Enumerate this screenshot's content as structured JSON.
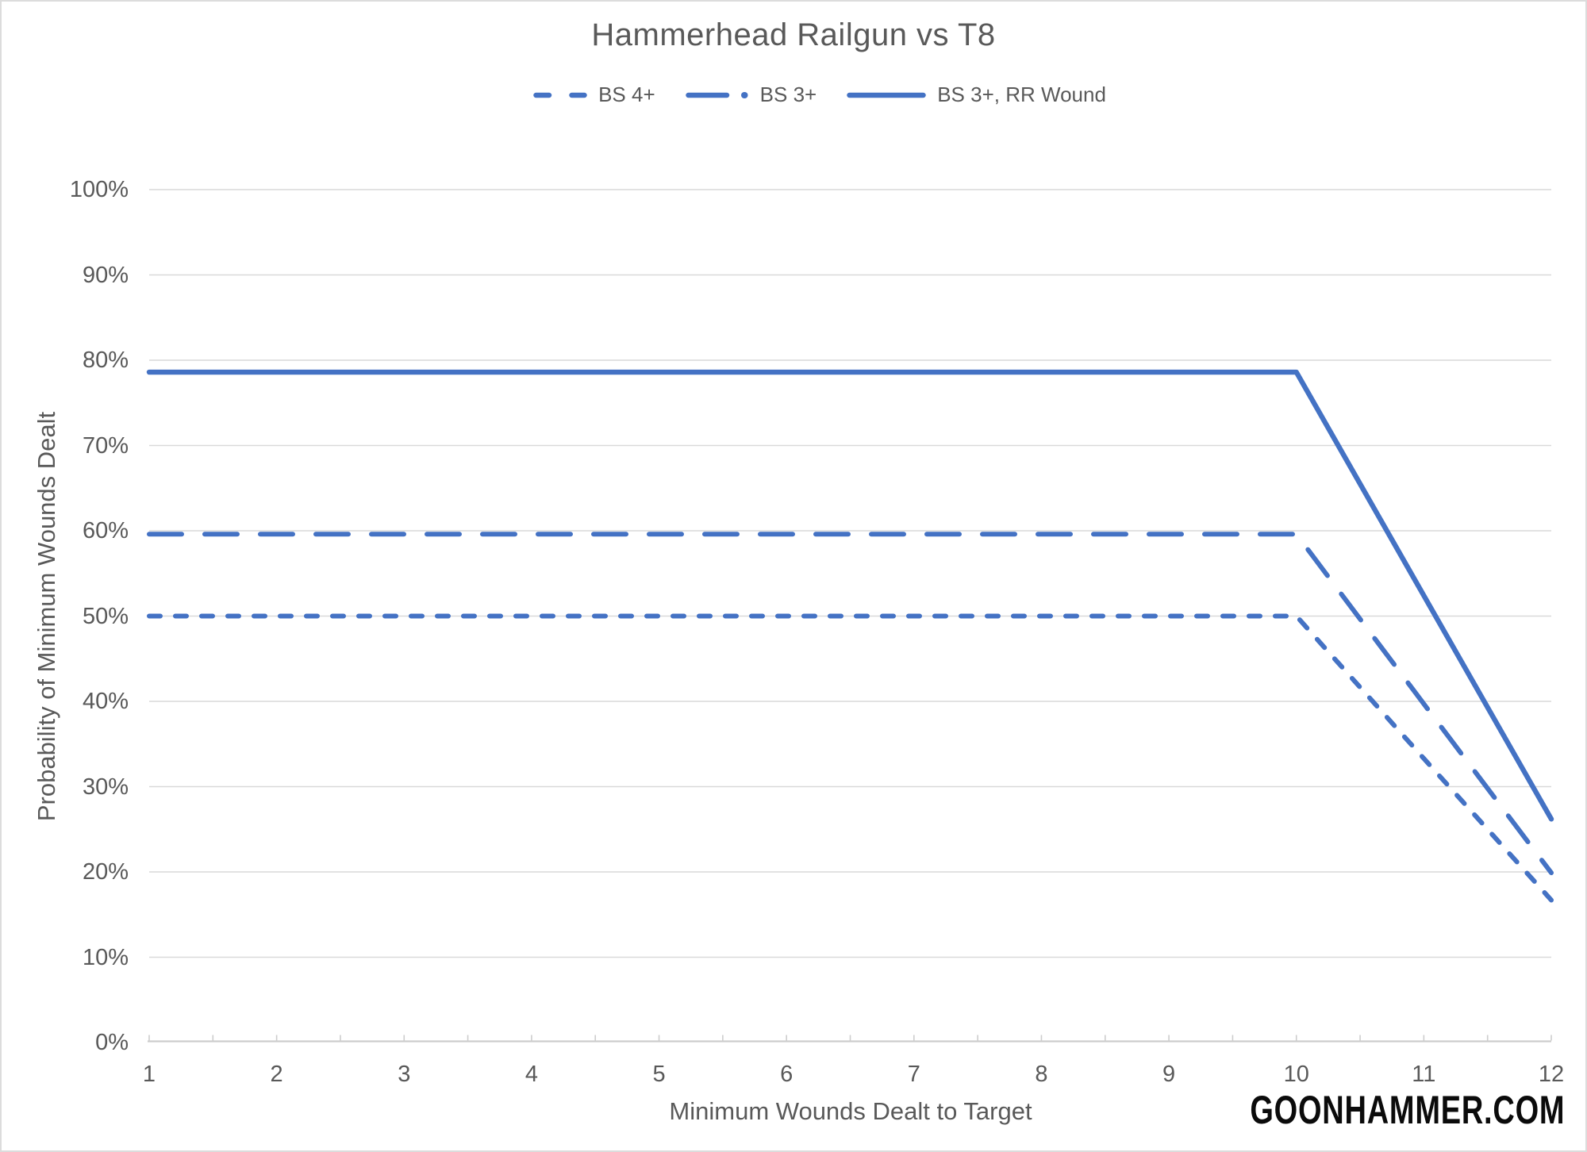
{
  "meta": {
    "watermark": "GOONHAMMER.COM"
  },
  "colors": {
    "series_blue": "#4472C4",
    "text_gray": "#595959",
    "gridline_gray": "#D9D9D9",
    "axis_line_gray": "#CDCDCD",
    "watermark_black": "#0B0B0B"
  },
  "chart_data": {
    "type": "line",
    "title": "Hammerhead Railgun vs T8",
    "xlabel": "Minimum Wounds Dealt to Target",
    "ylabel": "Probability of Minimum Wounds Dealt",
    "x": [
      1,
      2,
      3,
      4,
      5,
      6,
      7,
      8,
      9,
      10,
      11,
      12
    ],
    "x_tick_labels": [
      "1",
      "2",
      "3",
      "4",
      "5",
      "6",
      "7",
      "8",
      "9",
      "10",
      "11",
      "12"
    ],
    "y_ticks_percent": [
      0,
      10,
      20,
      30,
      40,
      50,
      60,
      70,
      80,
      90,
      100
    ],
    "y_tick_labels": [
      "0%",
      "10%",
      "20%",
      "30%",
      "40%",
      "50%",
      "60%",
      "70%",
      "80%",
      "90%",
      "100%"
    ],
    "ylim": [
      0,
      100
    ],
    "grid": true,
    "legend_position": "top-center",
    "line_color": "#4472C4",
    "series": [
      {
        "name": "BS 4+",
        "dash": "short-dash",
        "values": [
          50,
          50,
          50,
          50,
          50,
          50,
          50,
          50,
          50,
          50,
          33.3,
          16.7
        ]
      },
      {
        "name": "BS 3+",
        "dash": "long-dash",
        "values": [
          59.6,
          59.6,
          59.6,
          59.6,
          59.6,
          59.6,
          59.6,
          59.6,
          59.6,
          59.6,
          39.7,
          19.9
        ]
      },
      {
        "name": "BS 3+, RR Wound",
        "dash": "solid",
        "values": [
          78.6,
          78.6,
          78.6,
          78.6,
          78.6,
          78.6,
          78.6,
          78.6,
          78.6,
          78.6,
          52.4,
          26.2
        ]
      }
    ]
  }
}
